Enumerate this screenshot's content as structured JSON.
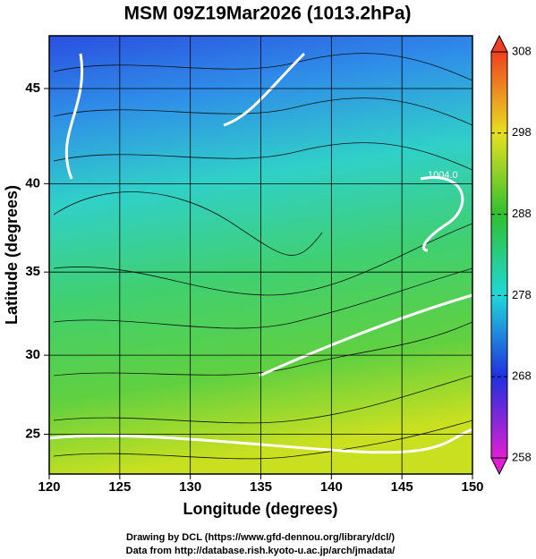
{
  "chart_data": {
    "type": "map",
    "title": "MSM 09Z19Mar2026 (1013.2hPa)",
    "x_label": "Longitude (degrees)",
    "y_label": "Latitude  (degrees)",
    "y_scale": "mercator",
    "xlim": [
      120,
      150
    ],
    "xticks": [
      120,
      125,
      130,
      135,
      140,
      145,
      150
    ],
    "ylim": [
      22.4,
      47.6
    ],
    "yticks": [
      25,
      30,
      35,
      40,
      45
    ],
    "grid": true,
    "contour_label": "1004.0",
    "colorbar": {
      "lim": [
        258,
        308
      ],
      "ticks": [
        258,
        268,
        278,
        288,
        298,
        308
      ],
      "colors": [
        "#e020d0",
        "#2030e0",
        "#20d8d8",
        "#30c030",
        "#e8e020",
        "#f04020"
      ]
    },
    "footer": [
      "Drawing by DCL (https://www.gfd-dennou.org/library/dcl/)",
      "Data from http://database.rish.kyoto-u.ac.jp/arch/jmadata/"
    ]
  }
}
